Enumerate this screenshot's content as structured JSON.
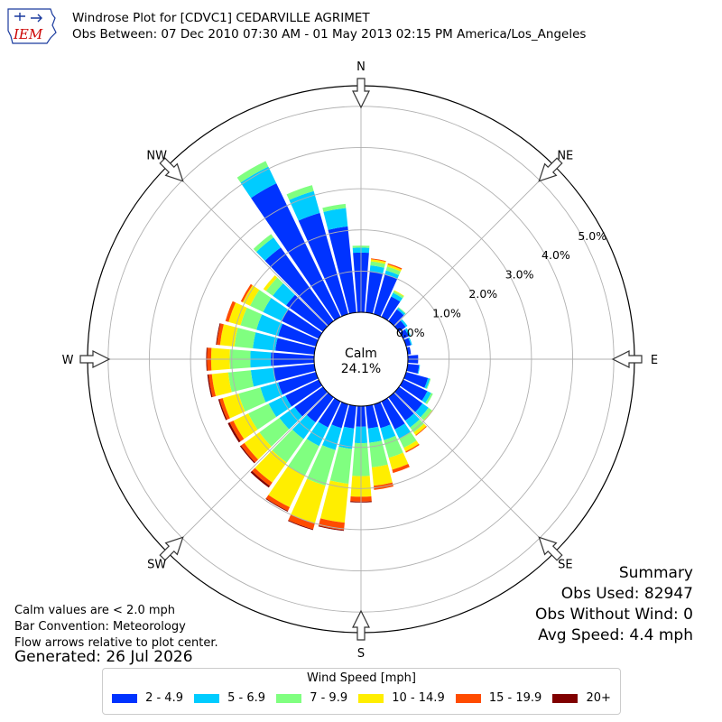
{
  "header": {
    "logo_text": "IEM",
    "title_line1": "Windrose Plot for [CDVC1] CEDARVILLE AGRIMET",
    "title_line2": "Obs Between: 07 Dec 2010 07:30 AM - 01 May 2013 02:15 PM America/Los_Angeles"
  },
  "summary": {
    "heading": "Summary",
    "obs_used": "Obs Used: 82947",
    "obs_without_wind": "Obs Without Wind: 0",
    "avg_speed": "Avg Speed: 4.4 mph"
  },
  "notes": {
    "calm_note": "Calm values are < 2.0 mph",
    "bar_convention": "Bar Convention: Meteorology",
    "flow_arrows": "Flow arrows relative to plot center."
  },
  "generated": "Generated: 26 Jul 2026",
  "chart_data": {
    "type": "windrose",
    "calm_label": "Calm",
    "calm_value": "24.1%",
    "directions_labels": [
      "N",
      "NE",
      "E",
      "SE",
      "S",
      "SW",
      "W",
      "NW"
    ],
    "radial_ticks": [
      "0.0%",
      "1.0%",
      "2.0%",
      "3.0%",
      "4.0%",
      "5.0%"
    ],
    "radial_max": 5.5,
    "legend_title": "Wind Speed [mph]",
    "bins": [
      {
        "label": "2 - 4.9",
        "color": "#0033ff"
      },
      {
        "label": "5 - 6.9",
        "color": "#00ccff"
      },
      {
        "label": "7 - 9.9",
        "color": "#80ff80"
      },
      {
        "label": "10 - 14.9",
        "color": "#ffee00"
      },
      {
        "label": "15 - 19.9",
        "color": "#ff4c00"
      },
      {
        "label": "20+",
        "color": "#800000"
      }
    ],
    "sectors": [
      {
        "dir": 0,
        "values": [
          1.45,
          0.12,
          0.05,
          0.0,
          0.0,
          0.0
        ]
      },
      {
        "dir": 10,
        "values": [
          1.0,
          0.15,
          0.1,
          0.05,
          0.02,
          0.0
        ]
      },
      {
        "dir": 20,
        "values": [
          1.0,
          0.1,
          0.1,
          0.05,
          0.03,
          0.0
        ]
      },
      {
        "dir": 30,
        "values": [
          0.55,
          0.1,
          0.05,
          0.02,
          0.0,
          0.0
        ]
      },
      {
        "dir": 40,
        "values": [
          0.35,
          0.05,
          0.02,
          0.0,
          0.0,
          0.0
        ]
      },
      {
        "dir": 50,
        "values": [
          0.2,
          0.05,
          0.0,
          0.0,
          0.0,
          0.0
        ]
      },
      {
        "dir": 60,
        "values": [
          0.15,
          0.05,
          0.0,
          0.0,
          0.0,
          0.0
        ]
      },
      {
        "dir": 70,
        "values": [
          0.12,
          0.03,
          0.0,
          0.0,
          0.0,
          0.0
        ]
      },
      {
        "dir": 80,
        "values": [
          0.08,
          0.0,
          0.0,
          0.0,
          0.0,
          0.0
        ]
      },
      {
        "dir": 90,
        "values": [
          0.25,
          0.0,
          0.0,
          0.0,
          0.0,
          0.0
        ]
      },
      {
        "dir": 100,
        "values": [
          0.28,
          0.02,
          0.0,
          0.0,
          0.0,
          0.0
        ]
      },
      {
        "dir": 110,
        "values": [
          0.55,
          0.05,
          0.02,
          0.0,
          0.0,
          0.0
        ]
      },
      {
        "dir": 120,
        "values": [
          0.65,
          0.1,
          0.05,
          0.0,
          0.0,
          0.0
        ]
      },
      {
        "dir": 130,
        "values": [
          0.7,
          0.18,
          0.1,
          0.03,
          0.0,
          0.0
        ]
      },
      {
        "dir": 140,
        "values": [
          0.7,
          0.2,
          0.15,
          0.08,
          0.02,
          0.0
        ]
      },
      {
        "dir": 150,
        "values": [
          0.75,
          0.25,
          0.25,
          0.1,
          0.03,
          0.0
        ]
      },
      {
        "dir": 160,
        "values": [
          0.6,
          0.3,
          0.45,
          0.3,
          0.08,
          0.0
        ]
      },
      {
        "dir": 170,
        "values": [
          0.55,
          0.35,
          0.6,
          0.45,
          0.1,
          0.0
        ]
      },
      {
        "dir": 180,
        "values": [
          0.5,
          0.4,
          0.8,
          0.5,
          0.12,
          0.02
        ]
      },
      {
        "dir": 190,
        "values": [
          0.55,
          0.5,
          0.85,
          0.95,
          0.18,
          0.02
        ]
      },
      {
        "dir": 200,
        "values": [
          0.6,
          0.55,
          0.9,
          0.95,
          0.15,
          0.02
        ]
      },
      {
        "dir": 210,
        "values": [
          0.7,
          0.5,
          0.8,
          0.85,
          0.1,
          0.02
        ]
      },
      {
        "dir": 220,
        "values": [
          0.75,
          0.5,
          0.7,
          0.6,
          0.1,
          0.05
        ]
      },
      {
        "dir": 230,
        "values": [
          0.85,
          0.45,
          0.6,
          0.45,
          0.1,
          0.03
        ]
      },
      {
        "dir": 240,
        "values": [
          0.9,
          0.45,
          0.55,
          0.4,
          0.1,
          0.05
        ]
      },
      {
        "dir": 250,
        "values": [
          0.95,
          0.45,
          0.55,
          0.4,
          0.08,
          0.03
        ]
      },
      {
        "dir": 260,
        "values": [
          1.0,
          0.55,
          0.55,
          0.4,
          0.08,
          0.03
        ]
      },
      {
        "dir": 270,
        "values": [
          1.05,
          0.5,
          0.5,
          0.45,
          0.1,
          0.02
        ]
      },
      {
        "dir": 280,
        "values": [
          0.95,
          0.55,
          0.45,
          0.35,
          0.08,
          0.02
        ]
      },
      {
        "dir": 290,
        "values": [
          0.95,
          0.55,
          0.4,
          0.3,
          0.08,
          0.0
        ]
      },
      {
        "dir": 300,
        "values": [
          1.0,
          0.5,
          0.35,
          0.2,
          0.05,
          0.0
        ]
      },
      {
        "dir": 310,
        "values": [
          1.1,
          0.4,
          0.2,
          0.08,
          0.0,
          0.0
        ]
      },
      {
        "dir": 320,
        "values": [
          2.2,
          0.3,
          0.1,
          0.0,
          0.0,
          0.0
        ]
      },
      {
        "dir": 330,
        "values": [
          3.6,
          0.45,
          0.15,
          0.0,
          0.0,
          0.0
        ]
      },
      {
        "dir": 340,
        "values": [
          2.55,
          0.55,
          0.15,
          0.0,
          0.0,
          0.0
        ]
      },
      {
        "dir": 350,
        "values": [
          2.1,
          0.45,
          0.1,
          0.0,
          0.0,
          0.0
        ]
      }
    ]
  }
}
